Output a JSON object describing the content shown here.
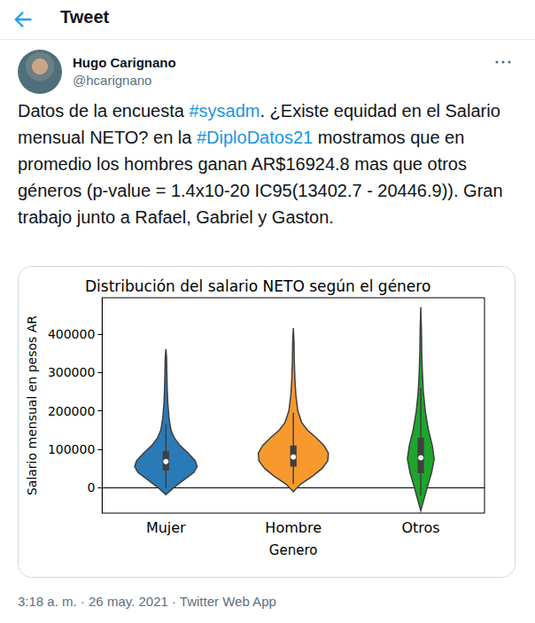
{
  "header": {
    "title": "Tweet"
  },
  "tweet": {
    "author": {
      "name": "Hugo Carignano",
      "handle": "@hcarignano"
    },
    "text": "Datos de la encuesta #sysadm. ¿Existe equidad en el Salario mensual NETO? en la #DiploDatos21 mostramos que en promedio los hombres ganan AR$16924.8 mas que otros géneros (p-value = 1.4x10-20 IC95(13402.7 - 20446.9)). Gran trabajo junto a Rafael, Gabriel y Gaston.",
    "footer": "3:18 a. m. · 26 may. 2021 · Twitter Web App"
  },
  "chart_data": {
    "type": "violin",
    "title": "Distribución del salario NETO según el género",
    "ylabel": "Salario mensual en pesos AR",
    "xlabel": "Genero",
    "categories": [
      "Mujer",
      "Hombre",
      "Otros"
    ],
    "colors": [
      "#2a7ab8",
      "#f8992e",
      "#1ea52b"
    ],
    "violins": [
      {
        "density": [
          [
            -18000,
            0
          ],
          [
            0,
            0.12
          ],
          [
            20000,
            0.28
          ],
          [
            40000,
            0.44
          ],
          [
            55000,
            0.49
          ],
          [
            70000,
            0.46
          ],
          [
            90000,
            0.35
          ],
          [
            110000,
            0.22
          ],
          [
            130000,
            0.13
          ],
          [
            150000,
            0.08
          ],
          [
            180000,
            0.05
          ],
          [
            220000,
            0.03
          ],
          [
            260000,
            0.02
          ],
          [
            300000,
            0.015
          ],
          [
            340000,
            0.01
          ],
          [
            360000,
            0
          ]
        ],
        "q1": 45000,
        "median": 68000,
        "q3": 95000,
        "whisker_low": 0,
        "whisker_high": 165000
      },
      {
        "density": [
          [
            -10000,
            0
          ],
          [
            10000,
            0.12
          ],
          [
            30000,
            0.3
          ],
          [
            50000,
            0.45
          ],
          [
            70000,
            0.54
          ],
          [
            90000,
            0.55
          ],
          [
            110000,
            0.48
          ],
          [
            130000,
            0.36
          ],
          [
            150000,
            0.22
          ],
          [
            170000,
            0.13
          ],
          [
            200000,
            0.07
          ],
          [
            240000,
            0.04
          ],
          [
            280000,
            0.025
          ],
          [
            330000,
            0.015
          ],
          [
            380000,
            0.01
          ],
          [
            415000,
            0
          ]
        ],
        "q1": 55000,
        "median": 80000,
        "q3": 110000,
        "whisker_low": 10000,
        "whisker_high": 195000
      },
      {
        "density": [
          [
            -60000,
            0
          ],
          [
            -30000,
            0.05
          ],
          [
            0,
            0.1
          ],
          [
            40000,
            0.17
          ],
          [
            75000,
            0.21
          ],
          [
            110000,
            0.18
          ],
          [
            150000,
            0.12
          ],
          [
            200000,
            0.07
          ],
          [
            250000,
            0.04
          ],
          [
            300000,
            0.025
          ],
          [
            350000,
            0.015
          ],
          [
            410000,
            0.01
          ],
          [
            470000,
            0
          ]
        ],
        "q1": 38000,
        "median": 78000,
        "q3": 130000,
        "whisker_low": -20000,
        "whisker_high": 260000
      }
    ],
    "ylim": [
      -66000,
      494000
    ],
    "yticks": [
      0,
      100000,
      200000,
      300000,
      400000
    ],
    "grid": false
  }
}
